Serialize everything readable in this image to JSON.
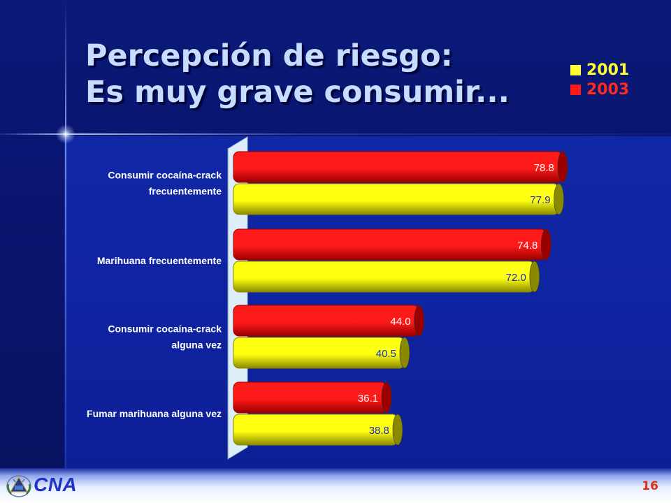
{
  "slide": {
    "title_line1": "Percepción de riesgo:",
    "title_line2": "Es muy grave consumir...",
    "page_number": "16",
    "org_name": "CNA",
    "background_color": "#0f23a0",
    "title_color": "#c6ddff"
  },
  "chart_data": {
    "type": "bar",
    "orientation": "horizontal",
    "categories": [
      [
        "Consumir cocaína-crack",
        "frecuentemente"
      ],
      [
        "Marihuana frecuentemente"
      ],
      [
        "Consumir cocaína-crack",
        "alguna vez"
      ],
      [
        "Fumar marihuana alguna vez"
      ]
    ],
    "series": [
      {
        "name": "2003",
        "values": [
          78.8,
          74.8,
          44.0,
          36.1
        ],
        "labels": [
          "78.8",
          "74.8",
          "44.0",
          "36.1"
        ],
        "color": "#ff1a1a",
        "dark": "#9a0000",
        "label_color": "#ffffff"
      },
      {
        "name": "2001",
        "values": [
          77.9,
          72.0,
          40.5,
          38.8
        ],
        "labels": [
          "77.9",
          "72.0",
          "40.5",
          "38.8"
        ],
        "color": "#ffff10",
        "dark": "#8a8a00",
        "label_color": "#1a2ad0"
      }
    ],
    "legend": [
      {
        "label": "2001",
        "color": "#ffff33"
      },
      {
        "label": "2003",
        "color": "#ff1a1a"
      }
    ],
    "legend_position": "top-right",
    "xlim": [
      0,
      100
    ],
    "title": "",
    "xlabel": "",
    "ylabel": "",
    "grid": false
  }
}
